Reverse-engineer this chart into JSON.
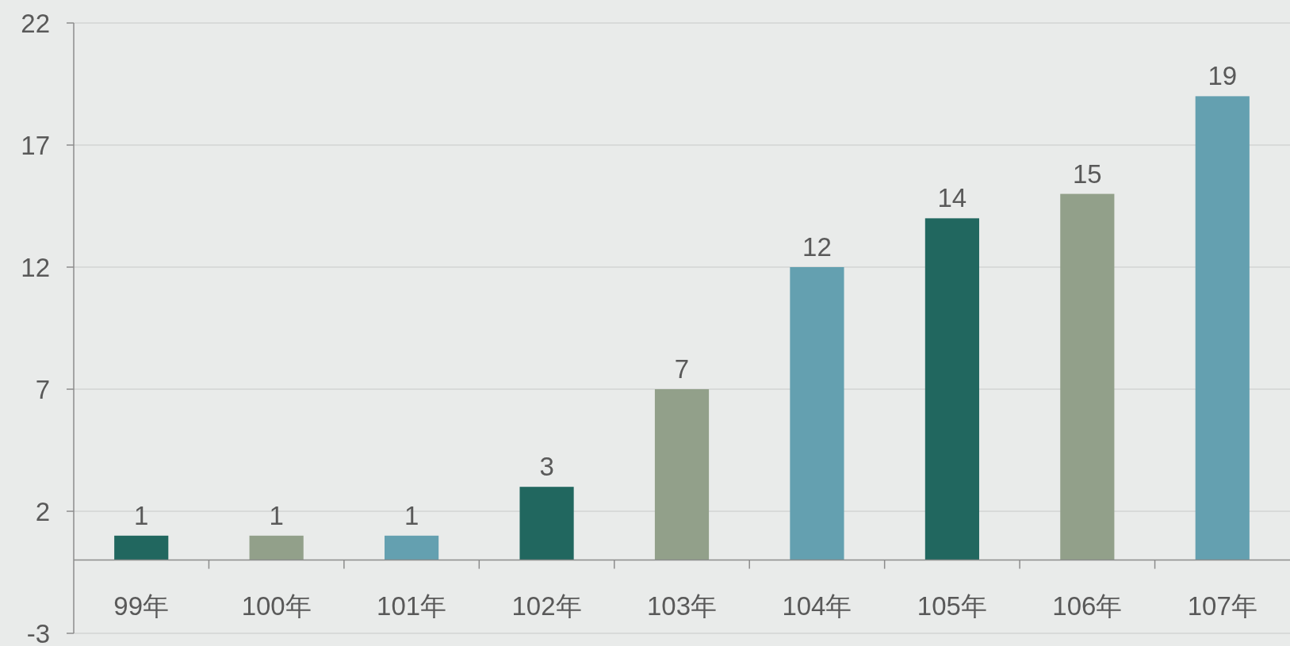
{
  "chart_data": {
    "type": "bar",
    "categories": [
      "99年",
      "100年",
      "101年",
      "102年",
      "103年",
      "104年",
      "105年",
      "106年",
      "107年"
    ],
    "values": [
      1,
      1,
      1,
      3,
      7,
      12,
      14,
      15,
      19
    ],
    "colors": [
      "#21675f",
      "#92a08a",
      "#64a0b0",
      "#21675f",
      "#92a08a",
      "#64a0b0",
      "#21675f",
      "#92a08a",
      "#64a0b0"
    ],
    "ylim": [
      -3,
      22
    ],
    "yticks": [
      -3,
      2,
      7,
      12,
      17,
      22
    ],
    "grid": "y",
    "data_labels": true
  }
}
